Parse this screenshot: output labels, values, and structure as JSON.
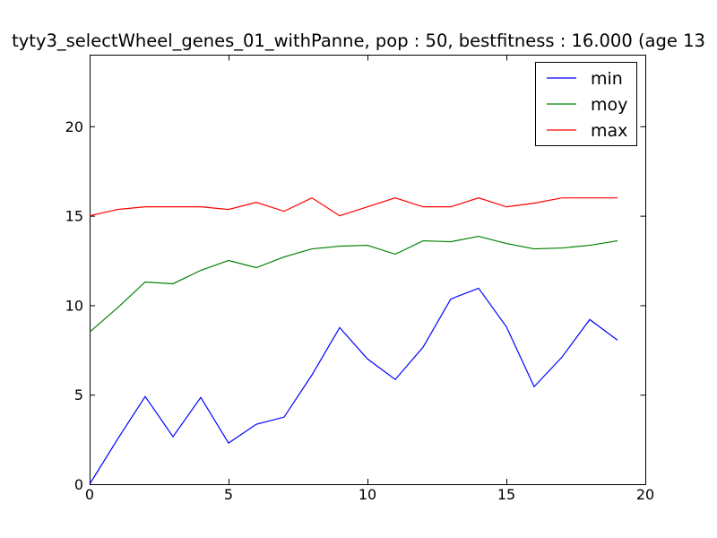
{
  "chart_data": {
    "type": "line",
    "title": "tyty3_selectWheel_genes_01_withPanne, pop : 50, bestfitness : 16.000 (age 13",
    "xlabel": "",
    "ylabel": "",
    "xlim": [
      0,
      20
    ],
    "ylim": [
      0,
      24
    ],
    "x_ticks": [
      0,
      5,
      10,
      15,
      20
    ],
    "y_ticks": [
      0,
      5,
      10,
      15,
      20
    ],
    "grid": false,
    "legend_position": "top-right",
    "x": [
      0,
      1,
      2,
      3,
      4,
      5,
      6,
      7,
      8,
      9,
      10,
      11,
      12,
      13,
      14,
      15,
      16,
      17,
      18,
      19
    ],
    "series": [
      {
        "name": "min",
        "color": "#0000ff",
        "values": [
          0.0,
          2.5,
          4.9,
          2.65,
          4.85,
          2.3,
          3.35,
          3.75,
          6.1,
          8.75,
          7.0,
          5.85,
          7.65,
          10.35,
          10.95,
          8.8,
          5.45,
          7.1,
          9.2,
          8.05
        ]
      },
      {
        "name": "moy",
        "color": "#008000",
        "values": [
          8.5,
          9.85,
          11.3,
          11.2,
          11.95,
          12.5,
          12.1,
          12.7,
          13.15,
          13.3,
          13.35,
          12.85,
          13.6,
          13.55,
          13.85,
          13.45,
          13.15,
          13.2,
          13.35,
          13.6
        ]
      },
      {
        "name": "max",
        "color": "#ff0000",
        "values": [
          15.0,
          15.35,
          15.5,
          15.5,
          15.5,
          15.35,
          15.75,
          15.25,
          16.0,
          15.0,
          15.5,
          16.0,
          15.5,
          15.5,
          16.0,
          15.5,
          15.7,
          16.0,
          16.0,
          16.0
        ]
      }
    ]
  }
}
